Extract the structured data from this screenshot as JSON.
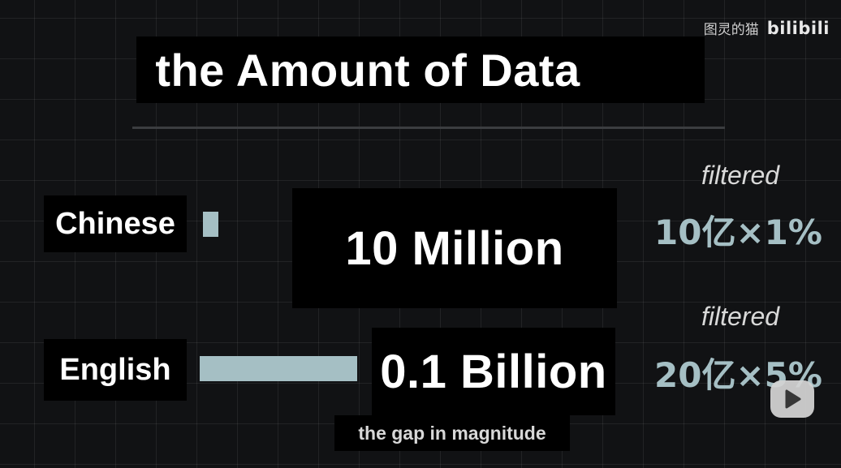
{
  "watermark": {
    "channel": "图灵的猫",
    "logo": "bilibili"
  },
  "title": "the Amount of Data",
  "chart_data": {
    "type": "bar",
    "orientation": "horizontal",
    "categories": [
      "Chinese",
      "English"
    ],
    "values": [
      10000000,
      100000000
    ],
    "value_labels": [
      "10 Million",
      "0.1 Billion"
    ],
    "annotations": [
      {
        "category": "Chinese",
        "note": "filtered",
        "formula": "10亿×1%"
      },
      {
        "category": "English",
        "note": "filtered",
        "formula": "20亿×5%"
      }
    ],
    "caption": "the gap in magnitude",
    "bar_color": "#a5bfc4",
    "grid": true
  },
  "controls": {
    "play_icon": "play-icon"
  }
}
